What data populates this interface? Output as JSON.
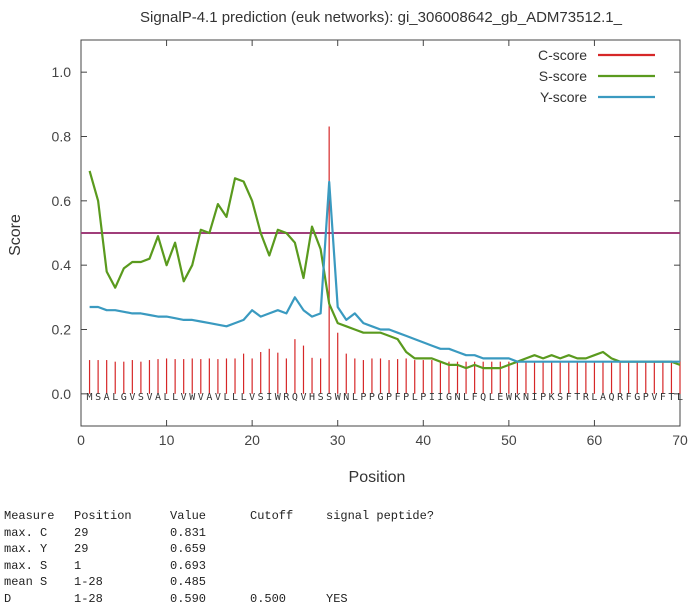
{
  "chart_data": {
    "type": "line",
    "title": "SignalP-4.1 prediction (euk networks): gi_306008642_gb_ADM73512.1_",
    "xlabel": "Position",
    "ylabel": "Score",
    "xlim": [
      0,
      70
    ],
    "ylim": [
      -0.1,
      1.1
    ],
    "x_ticks": [
      0,
      10,
      20,
      30,
      40,
      50,
      60,
      70
    ],
    "y_ticks": [
      "0.0",
      "0.2",
      "0.4",
      "0.6",
      "0.8",
      "1.0"
    ],
    "legend_position": "top-right",
    "cutoff": 0.5,
    "sequence": [
      "M",
      "S",
      "A",
      "L",
      "G",
      "V",
      "S",
      "V",
      "A",
      "L",
      "L",
      "V",
      "W",
      "V",
      "A",
      "V",
      "L",
      "L",
      "L",
      "V",
      "S",
      "I",
      "W",
      "R",
      "Q",
      "V",
      "H",
      "S",
      "S",
      "W",
      "N",
      "L",
      "P",
      "P",
      "G",
      "P",
      "F",
      "P",
      "L",
      "P",
      "I",
      "I",
      "G",
      "N",
      "L",
      "F",
      "Q",
      "L",
      "E",
      "W",
      "K",
      "N",
      "I",
      "P",
      "K",
      "S",
      "F",
      "T",
      "R",
      "L",
      "A",
      "Q",
      "R",
      "F",
      "G",
      "P",
      "V",
      "F",
      "T",
      "L"
    ],
    "series": [
      {
        "name": "C-score",
        "color": "#d62728",
        "style": "impulses",
        "values": [
          0.105,
          0.105,
          0.105,
          0.1,
          0.1,
          0.105,
          0.1,
          0.105,
          0.108,
          0.11,
          0.108,
          0.108,
          0.11,
          0.108,
          0.11,
          0.108,
          0.11,
          0.11,
          0.125,
          0.11,
          0.13,
          0.14,
          0.128,
          0.11,
          0.17,
          0.15,
          0.112,
          0.11,
          0.831,
          0.19,
          0.125,
          0.11,
          0.105,
          0.11,
          0.11,
          0.105,
          0.108,
          0.11,
          0.105,
          0.105,
          0.105,
          0.1,
          0.1,
          0.1,
          0.1,
          0.1,
          0.1,
          0.1,
          0.1,
          0.1,
          0.1,
          0.1,
          0.1,
          0.1,
          0.1,
          0.1,
          0.1,
          0.1,
          0.1,
          0.1,
          0.1,
          0.1,
          0.1,
          0.1,
          0.1,
          0.1,
          0.1,
          0.1,
          0.1,
          0.1
        ]
      },
      {
        "name": "S-score",
        "color": "#5a9a1e",
        "style": "line",
        "values": [
          0.693,
          0.6,
          0.38,
          0.33,
          0.39,
          0.41,
          0.41,
          0.42,
          0.49,
          0.4,
          0.47,
          0.35,
          0.4,
          0.51,
          0.5,
          0.59,
          0.55,
          0.67,
          0.66,
          0.6,
          0.5,
          0.43,
          0.51,
          0.5,
          0.47,
          0.36,
          0.52,
          0.45,
          0.28,
          0.22,
          0.21,
          0.2,
          0.19,
          0.19,
          0.19,
          0.18,
          0.17,
          0.13,
          0.11,
          0.11,
          0.11,
          0.1,
          0.09,
          0.09,
          0.08,
          0.09,
          0.08,
          0.08,
          0.08,
          0.09,
          0.1,
          0.11,
          0.12,
          0.11,
          0.12,
          0.11,
          0.12,
          0.11,
          0.11,
          0.12,
          0.13,
          0.11,
          0.1,
          0.1,
          0.1,
          0.1,
          0.1,
          0.1,
          0.1,
          0.09
        ]
      },
      {
        "name": "Y-score",
        "color": "#3a9ac0",
        "style": "line",
        "values": [
          0.27,
          0.27,
          0.26,
          0.26,
          0.255,
          0.25,
          0.25,
          0.245,
          0.24,
          0.24,
          0.235,
          0.23,
          0.23,
          0.225,
          0.22,
          0.215,
          0.21,
          0.22,
          0.23,
          0.26,
          0.24,
          0.25,
          0.26,
          0.25,
          0.3,
          0.26,
          0.24,
          0.25,
          0.659,
          0.27,
          0.23,
          0.25,
          0.22,
          0.21,
          0.2,
          0.2,
          0.19,
          0.18,
          0.17,
          0.16,
          0.15,
          0.14,
          0.14,
          0.13,
          0.12,
          0.12,
          0.11,
          0.11,
          0.11,
          0.11,
          0.1,
          0.1,
          0.1,
          0.1,
          0.1,
          0.1,
          0.1,
          0.1,
          0.1,
          0.1,
          0.1,
          0.1,
          0.1,
          0.1,
          0.1,
          0.1,
          0.1,
          0.1,
          0.1,
          0.1
        ]
      }
    ]
  },
  "summary": {
    "headers": [
      "Measure",
      "Position",
      "Value",
      "Cutoff",
      "signal peptide?"
    ],
    "rows": [
      [
        "max. C",
        "29",
        "0.831",
        "",
        ""
      ],
      [
        "max. Y",
        "29",
        "0.659",
        "",
        ""
      ],
      [
        "max. S",
        "1",
        "0.693",
        "",
        ""
      ],
      [
        "mean S",
        "1-28",
        "0.485",
        "",
        ""
      ],
      [
        "D",
        "1-28",
        "0.590",
        "0.500",
        "YES"
      ]
    ]
  }
}
